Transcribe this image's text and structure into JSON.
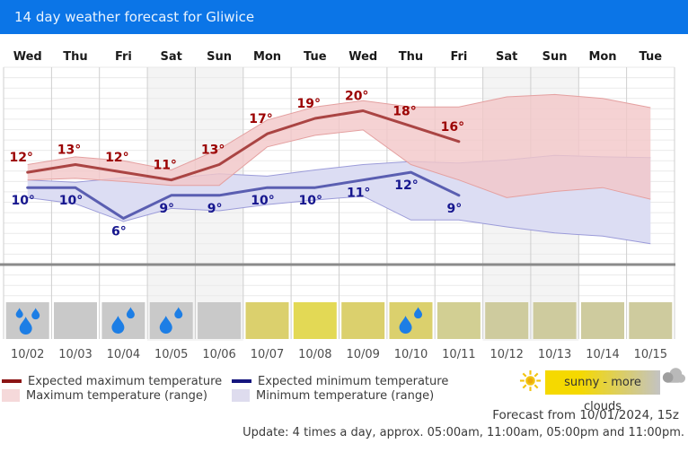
{
  "header": {
    "title": "14 day weather forecast for Gliwice",
    "bg_color": "#0b75e7",
    "text_color": "#e9f3fe"
  },
  "chart_data": {
    "type": "line",
    "title": "14 day weather forecast for Gliwice",
    "unit": "°",
    "ylim": [
      0,
      26
    ],
    "grid": true,
    "x_days": [
      "Wed",
      "Thu",
      "Fri",
      "Sat",
      "Sun",
      "Mon",
      "Tue",
      "Wed",
      "Thu",
      "Fri",
      "Sat",
      "Sun",
      "Mon",
      "Tue"
    ],
    "x_dates": [
      "10/02",
      "10/03",
      "10/04",
      "10/05",
      "10/06",
      "10/07",
      "10/08",
      "10/09",
      "10/10",
      "10/11",
      "10/12",
      "10/13",
      "10/14",
      "10/15"
    ],
    "weekend_columns": [
      3,
      4,
      10,
      11
    ],
    "series": [
      {
        "name": "Expected maximum temperature",
        "type": "line",
        "values": [
          12,
          13,
          12,
          11,
          13,
          17,
          19,
          20,
          18,
          16
        ],
        "color": "#aa4443",
        "label_color": "#9b0101"
      },
      {
        "name": "Expected minimum temperature",
        "type": "line",
        "values": [
          10,
          10,
          6,
          9,
          9,
          10,
          10,
          11,
          12,
          9
        ],
        "color": "#5a5eb1",
        "label_color": "#16168e"
      },
      {
        "name": "Maximum temperature (range)",
        "type": "band",
        "upper": [
          13,
          14,
          13.5,
          12.3,
          15,
          18.8,
          20.5,
          21.3,
          20.5,
          20.5,
          21.8,
          22.1,
          21.6,
          20.4
        ],
        "lower": [
          11,
          11.2,
          10.8,
          10.3,
          10.3,
          15.3,
          16.8,
          17.5,
          13,
          11,
          8.7,
          9.5,
          10,
          8.5
        ],
        "fill": "rgba(243,199,200,0.8)",
        "edge": "#e4a0a0"
      },
      {
        "name": "Minimum temperature (range)",
        "type": "band",
        "upper": [
          11,
          10.7,
          11.3,
          11.2,
          11.8,
          11.5,
          12.3,
          13,
          13.4,
          13.2,
          13.6,
          14.2,
          14,
          13.9
        ],
        "lower": [
          8.7,
          7.9,
          5.6,
          7.3,
          7,
          7.8,
          8.4,
          8.9,
          5.8,
          5.8,
          4.9,
          4.1,
          3.7,
          2.7
        ],
        "fill": "#dcddf3",
        "edge": "#9b9bd9"
      }
    ],
    "weather_icons": [
      {
        "date": "10/02",
        "rain_drops": 3,
        "box_color": "#c9c9c9"
      },
      {
        "date": "10/03",
        "rain_drops": 0,
        "box_color": "#c9c9c9"
      },
      {
        "date": "10/04",
        "rain_drops": 2,
        "box_color": "#c9c9c9"
      },
      {
        "date": "10/05",
        "rain_drops": 2,
        "box_color": "#c9c9c9"
      },
      {
        "date": "10/06",
        "rain_drops": 0,
        "box_color": "#c9c9c9"
      },
      {
        "date": "10/07",
        "rain_drops": 0,
        "box_color": "#dbd06d"
      },
      {
        "date": "10/08",
        "rain_drops": 0,
        "box_color": "#e3d955"
      },
      {
        "date": "10/09",
        "rain_drops": 0,
        "box_color": "#dbd06d"
      },
      {
        "date": "10/10",
        "rain_drops": 2,
        "box_color": "#dbd06d"
      },
      {
        "date": "10/11",
        "rain_drops": 0,
        "box_color": "#d2cf93"
      },
      {
        "date": "10/12",
        "rain_drops": 0,
        "box_color": "#cecb9e"
      },
      {
        "date": "10/13",
        "rain_drops": 0,
        "box_color": "#cecb9e"
      },
      {
        "date": "10/14",
        "rain_drops": 0,
        "box_color": "#cecb9e"
      },
      {
        "date": "10/15",
        "rain_drops": 0,
        "box_color": "#cecb9e"
      }
    ],
    "raindrop_color": "#1d7ee5"
  },
  "legend": {
    "items": [
      {
        "label": "Expected maximum temperature",
        "swatch": "line",
        "color": "#8b1515"
      },
      {
        "label": "Expected minimum temperature",
        "swatch": "line",
        "color": "#15157e"
      },
      {
        "label": "Maximum temperature (range)",
        "swatch": "box",
        "color": "#f5d9da"
      },
      {
        "label": "Minimum temperature (range)",
        "swatch": "box",
        "color": "#dedcee"
      }
    ]
  },
  "sun_scale": {
    "label": "sunny - more clouds",
    "from": "#f5d900",
    "to": "#c3c3c3"
  },
  "footer": {
    "forecast_from": "Forecast from 10/01/2024, 15z",
    "update": "Update: 4 times a day, approx. 05:00am, 11:00am, 05:00pm and 11:00pm."
  }
}
